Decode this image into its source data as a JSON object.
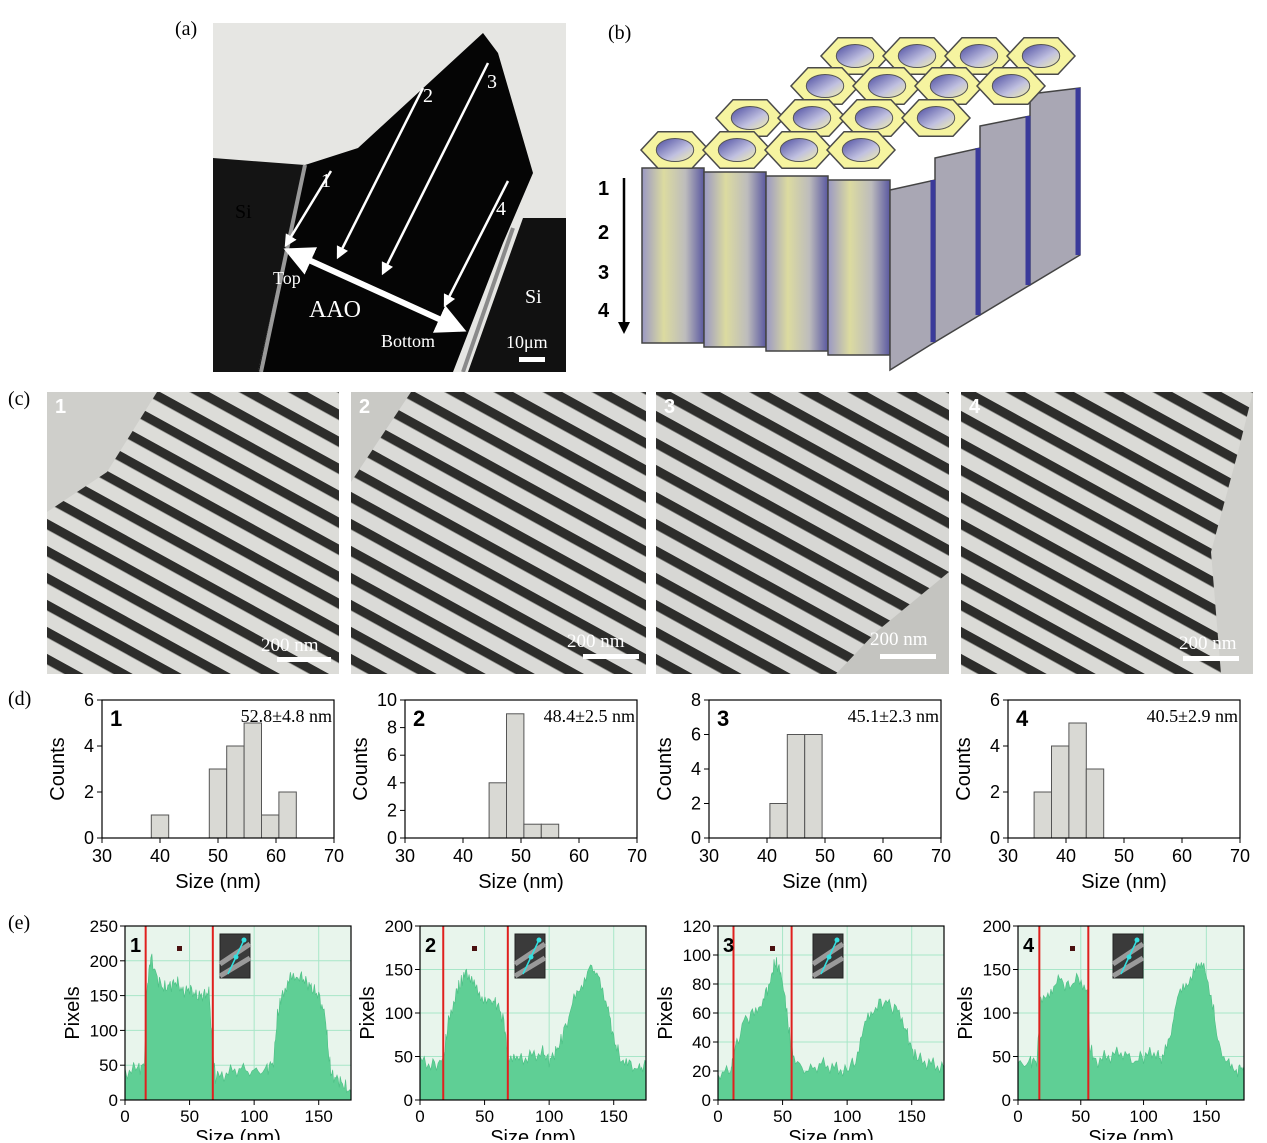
{
  "figure": {
    "panel_labels": {
      "a": "(a)",
      "b": "(b)",
      "c": "(c)",
      "d": "(d)",
      "e": "(e)"
    },
    "panel_a": {
      "labels": {
        "si_left": "Si",
        "si_right": "Si",
        "top": "Top",
        "bottom": "Bottom",
        "aao": "AAO",
        "scale": "10μm"
      },
      "arrow_numbers": [
        "1",
        "2",
        "3",
        "4"
      ]
    },
    "panel_b": {
      "depth_labels": [
        "1",
        "2",
        "3",
        "4"
      ]
    },
    "panel_c": {
      "images": [
        {
          "number": "1",
          "scale": "200 nm"
        },
        {
          "number": "2",
          "scale": "200 nm"
        },
        {
          "number": "3",
          "scale": "200 nm"
        },
        {
          "number": "4",
          "scale": "200 nm"
        }
      ]
    },
    "colors": {
      "histogram_fill": "#d9d9d4",
      "profile_fill": "#5fcf95",
      "profile_bg": "#e8f5ec",
      "grid": "#a8e6c8",
      "marker_line": "#e0201e"
    }
  },
  "chart_data": [
    {
      "panel": "d",
      "type": "bar",
      "label": "1",
      "annotation": "52.8±4.8 nm",
      "xlabel": "Size (nm)",
      "ylabel": "Counts",
      "xlim": [
        30,
        70
      ],
      "ylim": [
        0,
        6
      ],
      "xticks": [
        30,
        40,
        50,
        60,
        70
      ],
      "yticks": [
        0,
        2,
        4,
        6
      ],
      "bin_width": 3,
      "bins": [
        {
          "x0": 38.5,
          "count": 1
        },
        {
          "x0": 48.5,
          "count": 3
        },
        {
          "x0": 51.5,
          "count": 4
        },
        {
          "x0": 54.5,
          "count": 5
        },
        {
          "x0": 57.5,
          "count": 1
        },
        {
          "x0": 60.5,
          "count": 2
        }
      ]
    },
    {
      "panel": "d",
      "type": "bar",
      "label": "2",
      "annotation": "48.4±2.5 nm",
      "xlabel": "Size (nm)",
      "ylabel": "Counts",
      "xlim": [
        30,
        70
      ],
      "ylim": [
        0,
        10
      ],
      "xticks": [
        30,
        40,
        50,
        60,
        70
      ],
      "yticks": [
        0,
        2,
        4,
        6,
        8,
        10
      ],
      "bin_width": 3,
      "bins": [
        {
          "x0": 44.5,
          "count": 4
        },
        {
          "x0": 47.5,
          "count": 9
        },
        {
          "x0": 50.5,
          "count": 1
        },
        {
          "x0": 53.5,
          "count": 1
        }
      ]
    },
    {
      "panel": "d",
      "type": "bar",
      "label": "3",
      "annotation": "45.1±2.3 nm",
      "xlabel": "Size (nm)",
      "ylabel": "Counts",
      "xlim": [
        30,
        70
      ],
      "ylim": [
        0,
        8
      ],
      "xticks": [
        30,
        40,
        50,
        60,
        70
      ],
      "yticks": [
        0,
        2,
        4,
        6,
        8
      ],
      "bin_width": 3,
      "bins": [
        {
          "x0": 40.5,
          "count": 2
        },
        {
          "x0": 43.5,
          "count": 6
        },
        {
          "x0": 46.5,
          "count": 6
        }
      ]
    },
    {
      "panel": "d",
      "type": "bar",
      "label": "4",
      "annotation": "40.5±2.9 nm",
      "xlabel": "Size (nm)",
      "ylabel": "Counts",
      "xlim": [
        30,
        70
      ],
      "ylim": [
        0,
        6
      ],
      "xticks": [
        30,
        40,
        50,
        60,
        70
      ],
      "yticks": [
        0,
        2,
        4,
        6
      ],
      "bin_width": 3,
      "bins": [
        {
          "x0": 34.5,
          "count": 2
        },
        {
          "x0": 37.5,
          "count": 4
        },
        {
          "x0": 40.5,
          "count": 5
        },
        {
          "x0": 43.5,
          "count": 3
        }
      ]
    },
    {
      "panel": "e",
      "type": "area",
      "label": "1",
      "xlabel": "Size (nm)",
      "ylabel": "Pixels",
      "xlim": [
        0,
        175
      ],
      "ylim": [
        0,
        250
      ],
      "xticks": [
        0,
        50,
        100,
        150
      ],
      "yticks": [
        0,
        50,
        100,
        150,
        200,
        250
      ],
      "markers_x": [
        16,
        68
      ],
      "profile": [
        [
          0,
          40
        ],
        [
          10,
          45
        ],
        [
          15,
          50
        ],
        [
          17,
          160
        ],
        [
          20,
          205
        ],
        [
          25,
          175
        ],
        [
          30,
          160
        ],
        [
          35,
          165
        ],
        [
          40,
          170
        ],
        [
          45,
          155
        ],
        [
          50,
          160
        ],
        [
          55,
          150
        ],
        [
          60,
          150
        ],
        [
          65,
          155
        ],
        [
          68,
          70
        ],
        [
          70,
          30
        ],
        [
          80,
          40
        ],
        [
          90,
          45
        ],
        [
          100,
          40
        ],
        [
          110,
          45
        ],
        [
          115,
          55
        ],
        [
          118,
          120
        ],
        [
          122,
          155
        ],
        [
          128,
          175
        ],
        [
          135,
          180
        ],
        [
          140,
          170
        ],
        [
          145,
          160
        ],
        [
          150,
          150
        ],
        [
          155,
          120
        ],
        [
          158,
          60
        ],
        [
          160,
          35
        ],
        [
          165,
          30
        ],
        [
          170,
          20
        ],
        [
          175,
          10
        ]
      ]
    },
    {
      "panel": "e",
      "type": "area",
      "label": "2",
      "xlabel": "Size (nm)",
      "ylabel": "Pixels",
      "xlim": [
        0,
        175
      ],
      "ylim": [
        0,
        200
      ],
      "xticks": [
        0,
        50,
        100,
        150
      ],
      "yticks": [
        0,
        50,
        100,
        150,
        200
      ],
      "markers_x": [
        18,
        68
      ],
      "profile": [
        [
          0,
          45
        ],
        [
          10,
          40
        ],
        [
          18,
          45
        ],
        [
          22,
          90
        ],
        [
          28,
          125
        ],
        [
          32,
          135
        ],
        [
          36,
          150
        ],
        [
          42,
          130
        ],
        [
          48,
          120
        ],
        [
          55,
          115
        ],
        [
          60,
          110
        ],
        [
          65,
          90
        ],
        [
          68,
          50
        ],
        [
          75,
          45
        ],
        [
          85,
          50
        ],
        [
          95,
          55
        ],
        [
          100,
          45
        ],
        [
          105,
          55
        ],
        [
          110,
          70
        ],
        [
          118,
          110
        ],
        [
          125,
          130
        ],
        [
          132,
          160
        ],
        [
          138,
          140
        ],
        [
          145,
          110
        ],
        [
          150,
          70
        ],
        [
          155,
          50
        ],
        [
          162,
          40
        ],
        [
          170,
          35
        ],
        [
          175,
          40
        ]
      ]
    },
    {
      "panel": "e",
      "type": "area",
      "label": "3",
      "xlabel": "Size (nm)",
      "ylabel": "Pixels",
      "xlim": [
        0,
        175
      ],
      "ylim": [
        0,
        120
      ],
      "xticks": [
        0,
        50,
        100,
        150
      ],
      "yticks": [
        0,
        20,
        40,
        60,
        80,
        100,
        120
      ],
      "markers_x": [
        12,
        57
      ],
      "profile": [
        [
          0,
          18
        ],
        [
          10,
          20
        ],
        [
          12,
          30
        ],
        [
          20,
          55
        ],
        [
          28,
          60
        ],
        [
          35,
          70
        ],
        [
          40,
          80
        ],
        [
          44,
          95
        ],
        [
          48,
          90
        ],
        [
          52,
          70
        ],
        [
          56,
          40
        ],
        [
          60,
          25
        ],
        [
          70,
          20
        ],
        [
          80,
          25
        ],
        [
          90,
          22
        ],
        [
          100,
          20
        ],
        [
          108,
          30
        ],
        [
          115,
          55
        ],
        [
          122,
          65
        ],
        [
          130,
          68
        ],
        [
          138,
          62
        ],
        [
          145,
          50
        ],
        [
          150,
          35
        ],
        [
          155,
          28
        ],
        [
          165,
          25
        ],
        [
          175,
          22
        ]
      ]
    },
    {
      "panel": "e",
      "type": "area",
      "label": "4",
      "xlabel": "Size (nm)",
      "ylabel": "Pixels",
      "xlim": [
        0,
        180
      ],
      "ylim": [
        0,
        200
      ],
      "xticks": [
        0,
        50,
        100,
        150
      ],
      "yticks": [
        0,
        50,
        100,
        150,
        200
      ],
      "markers_x": [
        17,
        56
      ],
      "profile": [
        [
          0,
          40
        ],
        [
          10,
          45
        ],
        [
          15,
          45
        ],
        [
          18,
          110
        ],
        [
          25,
          125
        ],
        [
          32,
          140
        ],
        [
          40,
          130
        ],
        [
          48,
          140
        ],
        [
          55,
          130
        ],
        [
          57,
          60
        ],
        [
          62,
          45
        ],
        [
          72,
          50
        ],
        [
          82,
          55
        ],
        [
          92,
          45
        ],
        [
          100,
          50
        ],
        [
          110,
          55
        ],
        [
          115,
          45
        ],
        [
          122,
          80
        ],
        [
          128,
          120
        ],
        [
          135,
          130
        ],
        [
          142,
          160
        ],
        [
          148,
          150
        ],
        [
          155,
          110
        ],
        [
          160,
          60
        ],
        [
          168,
          40
        ],
        [
          175,
          35
        ],
        [
          180,
          40
        ]
      ]
    }
  ]
}
